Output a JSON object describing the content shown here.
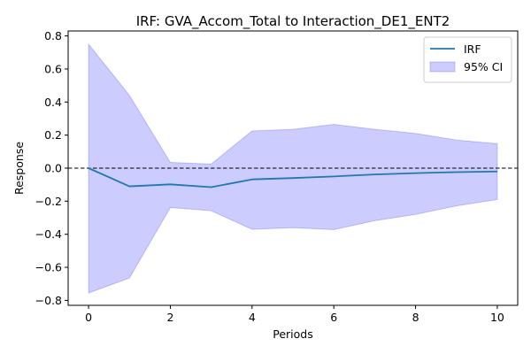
{
  "chart_data": {
    "type": "line",
    "title": "IRF: GVA_Accom_Total to Interaction_DE1_ENT2",
    "xlabel": "Periods",
    "ylabel": "Response",
    "x": [
      0,
      1,
      2,
      3,
      4,
      5,
      6,
      7,
      8,
      9,
      10
    ],
    "xlim": [
      -0.5,
      10.5
    ],
    "ylim": [
      -0.83,
      0.83
    ],
    "xticks": [
      0,
      2,
      4,
      6,
      8,
      10
    ],
    "yticks": [
      -0.8,
      -0.6,
      -0.4,
      -0.2,
      0.0,
      0.2,
      0.4,
      0.6,
      0.8
    ],
    "ytick_labels": [
      "−0.8",
      "−0.6",
      "−0.4",
      "−0.2",
      "0.0",
      "0.2",
      "0.4",
      "0.6",
      "0.8"
    ],
    "series": [
      {
        "name": "IRF",
        "kind": "line",
        "color": "#1f77b4",
        "values": [
          0.0,
          -0.11,
          -0.098,
          -0.115,
          -0.068,
          -0.06,
          -0.05,
          -0.038,
          -0.03,
          -0.024,
          -0.02
        ]
      },
      {
        "name": "95% CI",
        "kind": "band",
        "color": "#0000ff",
        "upper": [
          0.75,
          0.44,
          0.035,
          0.025,
          0.225,
          0.235,
          0.265,
          0.235,
          0.21,
          0.17,
          0.148
        ],
        "lower": [
          -0.755,
          -0.665,
          -0.238,
          -0.258,
          -0.37,
          -0.36,
          -0.372,
          -0.318,
          -0.28,
          -0.228,
          -0.19
        ]
      }
    ],
    "reference_line": {
      "y": 0,
      "style": "dashed",
      "color": "#000000"
    },
    "grid": false,
    "legend": "top-right"
  }
}
